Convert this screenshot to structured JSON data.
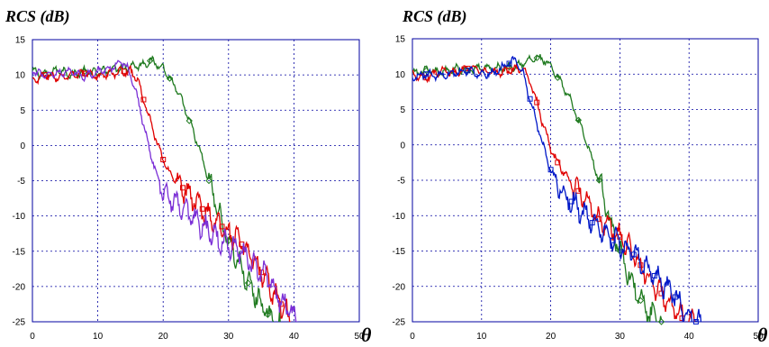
{
  "chart_data": [
    {
      "type": "line",
      "ylabel": "RCS (dB)",
      "xlabel": "θ",
      "xlim": [
        0,
        50
      ],
      "ylim": [
        -25,
        15
      ],
      "xticks": [
        0,
        10,
        20,
        30,
        40,
        50
      ],
      "yticks": [
        15,
        10,
        5,
        0,
        -5,
        -10,
        -15,
        -20,
        -25
      ],
      "grid": true,
      "series": [
        {
          "color": "#1f7a1f",
          "marker": "diamond",
          "x": [
            0,
            2,
            4,
            6,
            8,
            10,
            12,
            14,
            16,
            17,
            18,
            19,
            20,
            21,
            22,
            23,
            24,
            25,
            26,
            27,
            28,
            29,
            30,
            31,
            32,
            33,
            34,
            35,
            36,
            37,
            38
          ],
          "y": [
            10.5,
            10,
            10.8,
            10,
            10.5,
            10.3,
            10.8,
            11.2,
            11.3,
            11.5,
            12,
            11.6,
            11,
            9.5,
            8,
            6,
            3.5,
            1,
            -2,
            -5,
            -8,
            -11,
            -13.5,
            -15.5,
            -17.5,
            -19.5,
            -21,
            -22.5,
            -24,
            -25,
            -25.5
          ]
        },
        {
          "color": "#e00000",
          "marker": "square",
          "x": [
            0,
            2,
            4,
            6,
            8,
            10,
            12,
            14,
            15,
            16,
            17,
            18,
            19,
            20,
            21,
            22,
            23,
            24,
            25,
            26,
            27,
            28,
            29,
            30,
            31,
            32,
            33,
            34,
            35,
            36,
            37,
            38,
            39,
            40
          ],
          "y": [
            9,
            10,
            9.5,
            10,
            10.2,
            9.8,
            10.2,
            10.5,
            10.5,
            9.5,
            6.5,
            3.5,
            0.5,
            -2,
            -4,
            -5,
            -6,
            -7,
            -8,
            -9,
            -10,
            -11,
            -11.5,
            -12.5,
            -13,
            -14,
            -15,
            -16.5,
            -18,
            -19.5,
            -21,
            -22.5,
            -24,
            -25
          ]
        },
        {
          "color": "#7b2fd6",
          "marker": "none",
          "x": [
            0,
            2,
            4,
            6,
            8,
            10,
            12,
            13,
            14,
            15,
            16,
            17,
            18,
            19,
            20,
            21,
            22,
            23,
            24,
            25,
            26,
            27,
            28,
            29,
            30,
            31,
            32,
            33,
            34,
            35,
            36,
            37,
            38,
            39,
            40,
            41
          ],
          "y": [
            10.5,
            10,
            10.3,
            10.5,
            9.8,
            10.5,
            11,
            11.5,
            11.8,
            10,
            7,
            3,
            -1,
            -4,
            -6.5,
            -7.5,
            -8.5,
            -9,
            -10,
            -10.8,
            -11.5,
            -12.2,
            -13,
            -13.5,
            -14,
            -14.5,
            -15,
            -16,
            -17,
            -18,
            -19,
            -20.5,
            -22,
            -23,
            -24,
            -25
          ]
        }
      ]
    },
    {
      "type": "line",
      "ylabel": "RCS (dB)",
      "xlabel": "θ",
      "xlim": [
        0,
        50
      ],
      "ylim": [
        -25,
        15
      ],
      "xticks": [
        0,
        10,
        20,
        30,
        40,
        50
      ],
      "yticks": [
        15,
        10,
        5,
        0,
        -5,
        -10,
        -15,
        -20,
        -25
      ],
      "grid": true,
      "series": [
        {
          "color": "#1f7a1f",
          "marker": "diamond",
          "x": [
            0,
            2,
            4,
            6,
            8,
            10,
            12,
            14,
            16,
            17,
            18,
            19,
            20,
            21,
            22,
            23,
            24,
            25,
            26,
            27,
            28,
            29,
            30,
            31,
            32,
            33,
            34,
            35,
            36
          ],
          "y": [
            10,
            10.5,
            10.2,
            10.8,
            10.5,
            11,
            10.8,
            11,
            11.5,
            12,
            12.3,
            12,
            11,
            9.5,
            8,
            6,
            3.5,
            1,
            -2,
            -5,
            -8.5,
            -12,
            -15,
            -17.5,
            -20,
            -22,
            -23.5,
            -24.5,
            -25
          ]
        },
        {
          "color": "#e00000",
          "marker": "square",
          "x": [
            0,
            2,
            4,
            6,
            8,
            10,
            12,
            14,
            16,
            17,
            18,
            19,
            20,
            21,
            22,
            23,
            24,
            25,
            26,
            27,
            28,
            29,
            30,
            31,
            32,
            33,
            34,
            35,
            36,
            37,
            38,
            39,
            40,
            41
          ],
          "y": [
            10,
            9.5,
            10.5,
            10.2,
            10.8,
            10.5,
            10.2,
            10.5,
            10.8,
            9,
            6,
            2.5,
            -0.5,
            -2.5,
            -4,
            -5.5,
            -6.5,
            -7.5,
            -9,
            -10.5,
            -11,
            -12,
            -13,
            -14,
            -15.5,
            -17,
            -18.5,
            -20,
            -21,
            -22.5,
            -23.5,
            -24.5,
            -25,
            -25
          ]
        },
        {
          "color": "#0018c8",
          "marker": "square",
          "x": [
            0,
            2,
            4,
            6,
            8,
            10,
            12,
            14,
            15,
            16,
            17,
            18,
            19,
            20,
            21,
            22,
            23,
            24,
            25,
            26,
            27,
            28,
            29,
            30,
            31,
            32,
            33,
            34,
            35,
            36,
            37,
            38,
            39,
            40,
            41,
            42
          ],
          "y": [
            9.5,
            10,
            9.8,
            10.2,
            10.5,
            10,
            10.3,
            11.5,
            12,
            10,
            6.5,
            3,
            -0.5,
            -3.5,
            -5.5,
            -7,
            -8,
            -9,
            -10,
            -11,
            -12,
            -12.5,
            -13.5,
            -14,
            -15,
            -15.5,
            -16.5,
            -17.5,
            -18.5,
            -19.5,
            -20.5,
            -21.5,
            -23,
            -24,
            -25,
            -25
          ]
        }
      ]
    }
  ]
}
